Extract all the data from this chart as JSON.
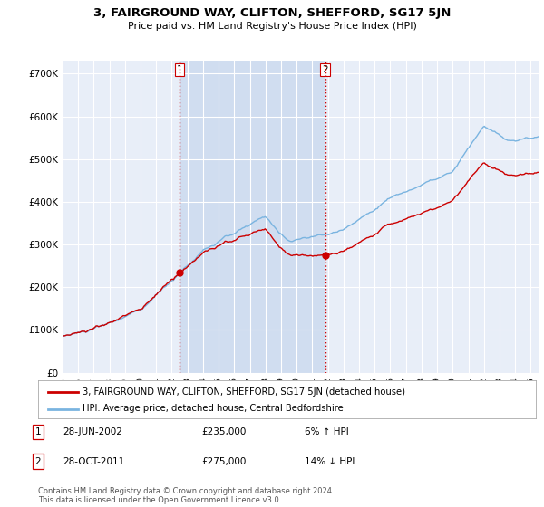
{
  "title": "3, FAIRGROUND WAY, CLIFTON, SHEFFORD, SG17 5JN",
  "subtitle": "Price paid vs. HM Land Registry's House Price Index (HPI)",
  "ylim": [
    0,
    730000
  ],
  "yticks": [
    0,
    100000,
    200000,
    300000,
    400000,
    500000,
    600000,
    700000
  ],
  "ytick_labels": [
    "£0",
    "£100K",
    "£200K",
    "£300K",
    "£400K",
    "£500K",
    "£600K",
    "£700K"
  ],
  "bg_color": "#ffffff",
  "plot_bg_color": "#e8eef8",
  "grid_color": "#ffffff",
  "hpi_color": "#7ab4e0",
  "price_color": "#cc0000",
  "shade_color": "#d0ddf0",
  "transaction1_x": 2002.49,
  "transaction1_price": 235000,
  "transaction2_x": 2011.83,
  "transaction2_price": 275000,
  "vline_color": "#cc0000",
  "legend_label_price": "3, FAIRGROUND WAY, CLIFTON, SHEFFORD, SG17 5JN (detached house)",
  "legend_label_hpi": "HPI: Average price, detached house, Central Bedfordshire",
  "annotation1_date": "28-JUN-2002",
  "annotation1_price": "£235,000",
  "annotation1_hpi": "6% ↑ HPI",
  "annotation2_date": "28-OCT-2011",
  "annotation2_price": "£275,000",
  "annotation2_hpi": "14% ↓ HPI",
  "footer": "Contains HM Land Registry data © Crown copyright and database right 2024.\nThis data is licensed under the Open Government Licence v3.0.",
  "xmin": 1995,
  "xmax": 2025.5
}
